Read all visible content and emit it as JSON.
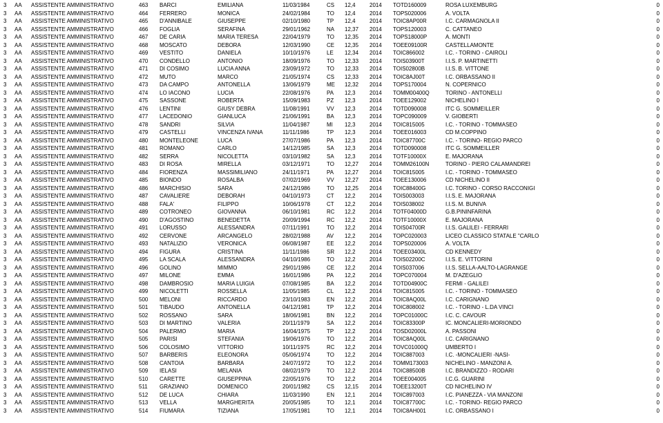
{
  "table": {
    "font_size": 8,
    "row_height": 11.5,
    "text_color": "#000000",
    "background": "#ffffff",
    "rows": [
      [
        "3",
        "AA",
        "ASSISTENTE AMMINISTRATIVO",
        "463",
        "BARCI",
        "EMILIANA",
        "11/03/1984",
        "CS",
        "12,4",
        "2014",
        "TOTD160009",
        "ROSA LUXEMBURG",
        "0"
      ],
      [
        "3",
        "AA",
        "ASSISTENTE AMMINISTRATIVO",
        "464",
        "FERRERO",
        "MONICA",
        "24/02/1984",
        "TO",
        "12,4",
        "2014",
        "TOPS020006",
        "A. VOLTA",
        "0"
      ],
      [
        "3",
        "AA",
        "ASSISTENTE AMMINISTRATIVO",
        "465",
        "D'ANNIBALE",
        "GIUSEPPE",
        "02/10/1980",
        "TP",
        "12,4",
        "2014",
        "TOIC8AP00R",
        "I.C. CARMAGNOLA II",
        "0"
      ],
      [
        "3",
        "AA",
        "ASSISTENTE AMMINISTRATIVO",
        "466",
        "FOGLIA",
        "SERAFINA",
        "29/01/1962",
        "NA",
        "12,37",
        "2014",
        "TOPS120003",
        "C. CATTANEO",
        "0"
      ],
      [
        "3",
        "AA",
        "ASSISTENTE AMMINISTRATIVO",
        "467",
        "DE CARIA",
        "MARIA TERESA",
        "22/04/1979",
        "TO",
        "12,35",
        "2014",
        "TOPS18000P",
        "A. MONTI",
        "0"
      ],
      [
        "3",
        "AA",
        "ASSISTENTE AMMINISTRATIVO",
        "468",
        "MOSCATO",
        "DEBORA",
        "12/03/1990",
        "CE",
        "12,35",
        "2014",
        "TOEE09100R",
        "CASTELLAMONTE",
        "0"
      ],
      [
        "3",
        "AA",
        "ASSISTENTE AMMINISTRATIVO",
        "469",
        "VESTITO",
        "DANIELA",
        "10/10/1976",
        "LE",
        "12,34",
        "2014",
        "TOIC866002",
        "I.C. - TORINO - CAIROLI",
        "0"
      ],
      [
        "3",
        "AA",
        "ASSISTENTE AMMINISTRATIVO",
        "470",
        "CONDELLO",
        "ANTONIO",
        "18/09/1976",
        "TO",
        "12,33",
        "2014",
        "TOIS03900T",
        "I.I.S. P. MARTINETTI",
        "0"
      ],
      [
        "3",
        "AA",
        "ASSISTENTE AMMINISTRATIVO",
        "471",
        "DI COSIMO",
        "LUCIA ANNA",
        "23/09/1972",
        "TO",
        "12,33",
        "2014",
        "TOIS02800B",
        "I.I.S. B. VITTONE",
        "0"
      ],
      [
        "3",
        "AA",
        "ASSISTENTE AMMINISTRATIVO",
        "472",
        "MUTO",
        "MARCO",
        "21/05/1974",
        "CS",
        "12,33",
        "2014",
        "TOIC8AJ00T",
        "I.C. ORBASSANO II",
        "0"
      ],
      [
        "3",
        "AA",
        "ASSISTENTE AMMINISTRATIVO",
        "473",
        "DA CAMPO",
        "ANTONELLA",
        "13/06/1979",
        "ME",
        "12,32",
        "2014",
        "TOPS170004",
        "N. COPERNICO",
        "0"
      ],
      [
        "3",
        "AA",
        "ASSISTENTE AMMINISTRATIVO",
        "474",
        "LO IACONO",
        "LUCIA",
        "22/08/1976",
        "PA",
        "12,3",
        "2014",
        "TOMM00400Q",
        "TORINO - ANTONELLI",
        "0"
      ],
      [
        "3",
        "AA",
        "ASSISTENTE AMMINISTRATIVO",
        "475",
        "SASSONE",
        "ROBERTA",
        "15/09/1983",
        "PZ",
        "12,3",
        "2014",
        "TOEE129002",
        "NICHELINO I",
        "0"
      ],
      [
        "3",
        "AA",
        "ASSISTENTE AMMINISTRATIVO",
        "476",
        "LENTINI",
        "GIUSY DEBRA",
        "11/08/1991",
        "VV",
        "12,3",
        "2014",
        "TOTD090008",
        "ITC G. SOMMEILLER",
        "0"
      ],
      [
        "3",
        "AA",
        "ASSISTENTE AMMINISTRATIVO",
        "477",
        "LACEDONIO",
        "GIANLUCA",
        "21/06/1991",
        "BA",
        "12,3",
        "2014",
        "TOPC090009",
        "V. GIOBERTI",
        "0"
      ],
      [
        "3",
        "AA",
        "ASSISTENTE AMMINISTRATIVO",
        "478",
        "SANDRI",
        "SILVIA",
        "11/04/1987",
        "MI",
        "12,3",
        "2014",
        "TOIC815005",
        "I.C. - TORINO - TOMMASEO",
        "0"
      ],
      [
        "3",
        "AA",
        "ASSISTENTE AMMINISTRATIVO",
        "479",
        "CASTELLI",
        "VINCENZA IVANA",
        "11/11/1986",
        "TP",
        "12,3",
        "2014",
        "TOEE016003",
        "CD M.COPPINO",
        "0"
      ],
      [
        "3",
        "AA",
        "ASSISTENTE AMMINISTRATIVO",
        "480",
        "MONTELEONE",
        "LUCA",
        "27/07/1986",
        "PA",
        "12,3",
        "2014",
        "TOIC87700C",
        "I.C. - TORINO- REGIO PARCO",
        "0"
      ],
      [
        "3",
        "AA",
        "ASSISTENTE AMMINISTRATIVO",
        "481",
        "ROMANO",
        "CARLO",
        "14/12/1985",
        "SA",
        "12,3",
        "2014",
        "TOTD090008",
        "ITC G. SOMMEILLER",
        "0"
      ],
      [
        "3",
        "AA",
        "ASSISTENTE AMMINISTRATIVO",
        "482",
        "SERRA",
        "NICOLETTA",
        "03/10/1982",
        "SA",
        "12,3",
        "2014",
        "TOTF10000X",
        "E. MAJORANA",
        "0"
      ],
      [
        "3",
        "AA",
        "ASSISTENTE AMMINISTRATIVO",
        "483",
        "DI ROSA",
        "MIRELLA",
        "03/12/1971",
        "TO",
        "12,27",
        "2014",
        "TOMM26100N",
        "TORINO - PIERO CALAMANDREI",
        "0"
      ],
      [
        "3",
        "AA",
        "ASSISTENTE AMMINISTRATIVO",
        "484",
        "FIORENZA",
        "MASSIMILIANO",
        "24/11/1971",
        "PA",
        "12,27",
        "2014",
        "TOIC815005",
        "I.C. - TORINO - TOMMASEO",
        "0"
      ],
      [
        "3",
        "AA",
        "ASSISTENTE AMMINISTRATIVO",
        "485",
        "BIONDO",
        "ROSALBA",
        "07/02/1969",
        "VV",
        "12,27",
        "2014",
        "TOEE130006",
        "CD NICHELINO II",
        "0"
      ],
      [
        "3",
        "AA",
        "ASSISTENTE AMMINISTRATIVO",
        "486",
        "MARCHISIO",
        "SARA",
        "24/12/1986",
        "TO",
        "12,25",
        "2014",
        "TOIC88400G",
        "I.C. TORINO - CORSO RACCONIGI",
        "0"
      ],
      [
        "3",
        "AA",
        "ASSISTENTE AMMINISTRATIVO",
        "487",
        "CAVALIERE",
        "DEBORAH",
        "04/10/1973",
        "CT",
        "12,2",
        "2014",
        "TOIS003003",
        "I.I.S. E. MAJORANA",
        "0"
      ],
      [
        "3",
        "AA",
        "ASSISTENTE AMMINISTRATIVO",
        "488",
        "FALA'",
        "FILIPPO",
        "10/06/1978",
        "CT",
        "12,2",
        "2014",
        "TOIS038002",
        "I.I.S. M. BUNIVA",
        "0"
      ],
      [
        "3",
        "AA",
        "ASSISTENTE AMMINISTRATIVO",
        "489",
        "COTRONEO",
        "GIOVANNA",
        "06/10/1981",
        "RC",
        "12,2",
        "2014",
        "TOTF04000D",
        "G.B.PININFARINA",
        "0"
      ],
      [
        "3",
        "AA",
        "ASSISTENTE AMMINISTRATIVO",
        "490",
        "D'AGOSTINO",
        "BENEDETTA",
        "20/09/1994",
        "RC",
        "12,2",
        "2014",
        "TOTF10000X",
        "E. MAJORANA",
        "0"
      ],
      [
        "3",
        "AA",
        "ASSISTENTE AMMINISTRATIVO",
        "491",
        "LORUSSO",
        "ALESSANDRA",
        "07/11/1991",
        "TO",
        "12,2",
        "2014",
        "TOIS04700R",
        "I.I.S. GALILEI - FERRARI",
        "0"
      ],
      [
        "3",
        "AA",
        "ASSISTENTE AMMINISTRATIVO",
        "492",
        "CERVONE",
        "ARCANGELO",
        "28/02/1988",
        "AV",
        "12,2",
        "2014",
        "TOPC020003",
        "LICEO CLASSICO STATALE \"CARLO",
        "0"
      ],
      [
        "3",
        "AA",
        "ASSISTENTE AMMINISTRATIVO",
        "493",
        "NATALIZIO",
        "VERONICA",
        "06/08/1987",
        "EE",
        "12,2",
        "2014",
        "TOPS020006",
        "A. VOLTA",
        "0"
      ],
      [
        "3",
        "AA",
        "ASSISTENTE AMMINISTRATIVO",
        "494",
        "FIGURA",
        "CRISTINA",
        "11/11/1986",
        "SR",
        "12,2",
        "2014",
        "TOEE03400L",
        "CD KENNEDY",
        "0"
      ],
      [
        "3",
        "AA",
        "ASSISTENTE AMMINISTRATIVO",
        "495",
        "LA SCALA",
        "ALESSANDRA",
        "04/10/1986",
        "TO",
        "12,2",
        "2014",
        "TOIS02200C",
        "I.I.S. E. VITTORINI",
        "0"
      ],
      [
        "3",
        "AA",
        "ASSISTENTE AMMINISTRATIVO",
        "496",
        "GOLINO",
        "MIMMO",
        "29/01/1986",
        "CE",
        "12,2",
        "2014",
        "TOIS037006",
        "I.I.S. SELLA-AALTO-LAGRANGE",
        "0"
      ],
      [
        "3",
        "AA",
        "ASSISTENTE AMMINISTRATIVO",
        "497",
        "MILONE",
        "EMMA",
        "16/01/1986",
        "PA",
        "12,2",
        "2014",
        "TOPC070004",
        "M. D'AZEGLIO",
        "0"
      ],
      [
        "3",
        "AA",
        "ASSISTENTE AMMINISTRATIVO",
        "498",
        "DAMBROSIO",
        "MARIA LUIGIA",
        "07/08/1985",
        "BA",
        "12,2",
        "2014",
        "TOTD04900C",
        "FERMI - GALILEI",
        "0"
      ],
      [
        "3",
        "AA",
        "ASSISTENTE AMMINISTRATIVO",
        "499",
        "NICOLETTI",
        "ROSSELLA",
        "11/05/1985",
        "CL",
        "12,2",
        "2014",
        "TOIC815005",
        "I.C. - TORINO - TOMMASEO",
        "0"
      ],
      [
        "3",
        "AA",
        "ASSISTENTE AMMINISTRATIVO",
        "500",
        "MELONI",
        "RICCARDO",
        "23/10/1983",
        "EN",
        "12,2",
        "2014",
        "TOIC8AQ00L",
        "I.C. CARIGNANO",
        "0"
      ],
      [
        "3",
        "AA",
        "ASSISTENTE AMMINISTRATIVO",
        "501",
        "TIBAUDO",
        "ANTONELLA",
        "04/12/1981",
        "TP",
        "12,2",
        "2014",
        "TOIC808002",
        "I.C. - TORINO - L.DA VINCI",
        "0"
      ],
      [
        "3",
        "AA",
        "ASSISTENTE AMMINISTRATIVO",
        "502",
        "ROSSANO",
        "SARA",
        "18/06/1981",
        "BN",
        "12,2",
        "2014",
        "TOPC01000C",
        "I.C. C. CAVOUR",
        "0"
      ],
      [
        "3",
        "AA",
        "ASSISTENTE AMMINISTRATIVO",
        "503",
        "DI MARTINO",
        "VALERIA",
        "20/11/1979",
        "SA",
        "12,2",
        "2014",
        "TOIC83300P",
        "IC. MONCALIERI-MORIONDO",
        "0"
      ],
      [
        "3",
        "AA",
        "ASSISTENTE AMMINISTRATIVO",
        "504",
        "PALERMO",
        "MARIA",
        "16/04/1975",
        "TP",
        "12,2",
        "2014",
        "TOSD02000L",
        "A. PASSONI",
        "0"
      ],
      [
        "3",
        "AA",
        "ASSISTENTE AMMINISTRATIVO",
        "505",
        "PARISI",
        "STEFANIA",
        "19/06/1976",
        "TO",
        "12,2",
        "2014",
        "TOIC8AQ00L",
        "I.C. CARIGNANO",
        "0"
      ],
      [
        "3",
        "AA",
        "ASSISTENTE AMMINISTRATIVO",
        "506",
        "COLOSIMO",
        "VITTORIO",
        "10/11/1975",
        "RC",
        "12,2",
        "2014",
        "TOVC01000Q",
        "UMBERTO I",
        "0"
      ],
      [
        "3",
        "AA",
        "ASSISTENTE AMMINISTRATIVO",
        "507",
        "BARBERIS",
        "ELEONORA",
        "05/06/1974",
        "TO",
        "12,2",
        "2014",
        "TOIC887003",
        "I.C. -MONCALIERI -NASI-",
        "0"
      ],
      [
        "3",
        "AA",
        "ASSISTENTE AMMINISTRATIVO",
        "508",
        "CANTOIA",
        "BARBARA",
        "24/07/1972",
        "TO",
        "12,2",
        "2014",
        "TOMM173003",
        "NICHELINO - MANZONI A.",
        "0"
      ],
      [
        "3",
        "AA",
        "ASSISTENTE AMMINISTRATIVO",
        "509",
        "IELASI",
        "MELANIA",
        "08/02/1979",
        "TO",
        "12,2",
        "2014",
        "TOIC88500B",
        "I.C. BRANDIZZO - RODARI",
        "0"
      ],
      [
        "3",
        "AA",
        "ASSISTENTE AMMINISTRATIVO",
        "510",
        "CARETTE",
        "GIUSEPPINA",
        "22/05/1976",
        "TO",
        "12,2",
        "2014",
        "TOEE004005",
        "I.C.G. GUARINI",
        "0"
      ],
      [
        "3",
        "AA",
        "ASSISTENTE AMMINISTRATIVO",
        "511",
        "GRAZIANO",
        "DOMENICO",
        "20/01/1982",
        "CS",
        "12,15",
        "2014",
        "TOEE13200T",
        "CD NICHELINO IV",
        "0"
      ],
      [
        "3",
        "AA",
        "ASSISTENTE AMMINISTRATIVO",
        "512",
        "DE LUCA",
        "CHIARA",
        "11/03/1990",
        "EN",
        "12,1",
        "2014",
        "TOIC897003",
        "I.C. PIANEZZA - VIA MANZONI",
        "0"
      ],
      [
        "3",
        "AA",
        "ASSISTENTE AMMINISTRATIVO",
        "513",
        "VELLA",
        "MARGHERITA",
        "20/05/1985",
        "TO",
        "12,1",
        "2014",
        "TOIC87700C",
        "I.C. - TORINO- REGIO PARCO",
        "0"
      ],
      [
        "3",
        "AA",
        "ASSISTENTE AMMINISTRATIVO",
        "514",
        "FIUMARA",
        "TIZIANA",
        "17/05/1981",
        "TO",
        "12,1",
        "2014",
        "TOIC8AH001",
        "I.C. ORBASSANO I",
        "0"
      ]
    ]
  }
}
